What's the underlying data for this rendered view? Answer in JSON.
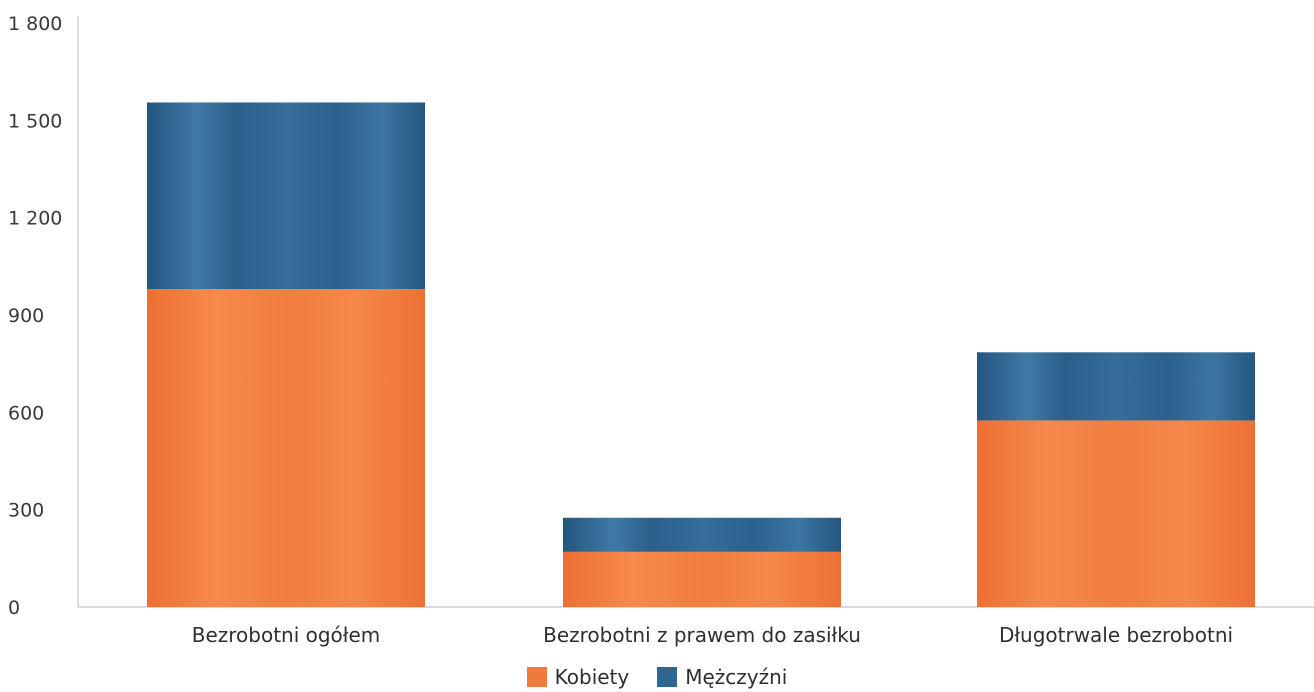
{
  "chart_data": {
    "type": "bar",
    "stacked": true,
    "categories": [
      "Bezrobotni ogółem",
      "Bezrobotni z prawem do zasiłku",
      "Długotrwale bezrobotni"
    ],
    "series": [
      {
        "name": "Kobiety",
        "values": [
          980,
          170,
          575
        ],
        "color": "#f07a3e"
      },
      {
        "name": "Mężczyźni",
        "values": [
          575,
          105,
          210
        ],
        "color": "#2e6792"
      }
    ],
    "yticks": [
      "0",
      "300",
      "600",
      "900",
      "1 200",
      "1 500",
      "1 800"
    ],
    "ylim": [
      0,
      1800
    ],
    "grid": false,
    "legend": "bottom-center",
    "title": "",
    "xlabel": "",
    "ylabel": ""
  }
}
